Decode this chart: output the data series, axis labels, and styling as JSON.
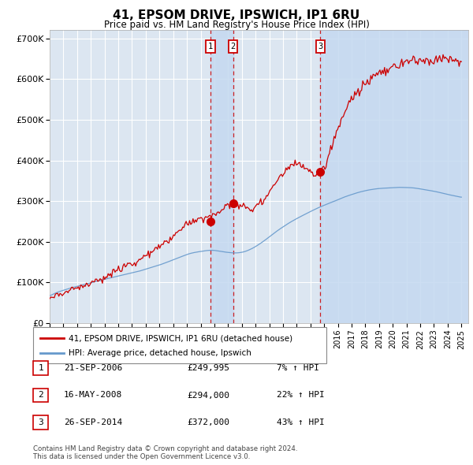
{
  "title": "41, EPSOM DRIVE, IPSWICH, IP1 6RU",
  "subtitle": "Price paid vs. HM Land Registry's House Price Index (HPI)",
  "legend_house": "41, EPSOM DRIVE, IPSWICH, IP1 6RU (detached house)",
  "legend_hpi": "HPI: Average price, detached house, Ipswich",
  "footer1": "Contains HM Land Registry data © Crown copyright and database right 2024.",
  "footer2": "This data is licensed under the Open Government Licence v3.0.",
  "transactions": [
    {
      "num": 1,
      "date": "21-SEP-2006",
      "price": "£249,995",
      "hpi": "7% ↑ HPI",
      "year": 2006.72
    },
    {
      "num": 2,
      "date": "16-MAY-2008",
      "price": "£294,000",
      "hpi": "22% ↑ HPI",
      "year": 2008.37
    },
    {
      "num": 3,
      "date": "26-SEP-2014",
      "price": "£372,000",
      "hpi": "43% ↑ HPI",
      "year": 2014.73
    }
  ],
  "transaction_dot_prices": [
    249995,
    294000,
    372000
  ],
  "plot_bg": "#dce6f1",
  "grid_color": "#ffffff",
  "red_color": "#cc0000",
  "blue_color": "#6699cc",
  "shade_color": "#c5d9f0",
  "ylim": [
    0,
    720000
  ],
  "xlim_start": 1995,
  "xlim_end": 2025.5,
  "yticks": [
    0,
    100000,
    200000,
    300000,
    400000,
    500000,
    600000,
    700000
  ],
  "ytick_labels": [
    "£0",
    "£100K",
    "£200K",
    "£300K",
    "£400K",
    "£500K",
    "£600K",
    "£700K"
  ]
}
